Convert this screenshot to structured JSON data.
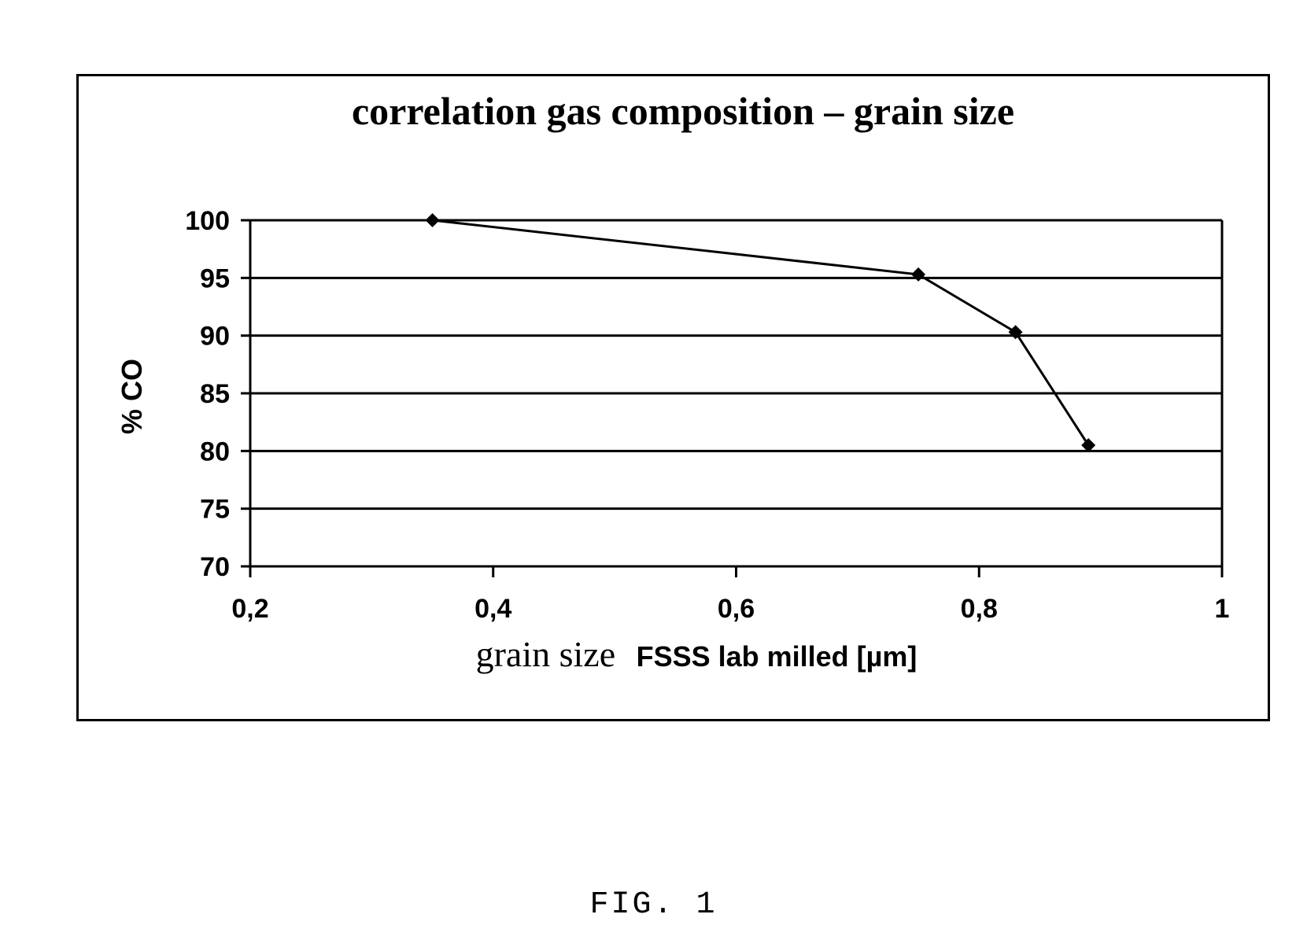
{
  "chart_data": {
    "type": "line",
    "title": "correlation gas composition – grain size",
    "xlabel_parts": [
      "grain size",
      "FSSS lab milled [µm]"
    ],
    "ylabel": "% CO",
    "xlim": [
      0.2,
      1
    ],
    "ylim": [
      70,
      100
    ],
    "x_ticks": [
      0.2,
      0.4,
      0.6,
      0.8,
      1
    ],
    "x_tick_labels": [
      "0,2",
      "0,4",
      "0,6",
      "0,8",
      "1"
    ],
    "y_ticks": [
      70,
      75,
      80,
      85,
      90,
      95,
      100
    ],
    "y_tick_labels": [
      "70",
      "75",
      "80",
      "85",
      "90",
      "95",
      "100"
    ],
    "grid": "horizontal",
    "marker": "diamond",
    "series": [
      {
        "x": [
          0.35,
          0.75,
          0.83,
          0.89
        ],
        "y": [
          100,
          95.3,
          90.3,
          80.5
        ]
      }
    ]
  },
  "caption": "FIG. 1",
  "colors": {
    "line": "#000000",
    "background": "#ffffff"
  }
}
